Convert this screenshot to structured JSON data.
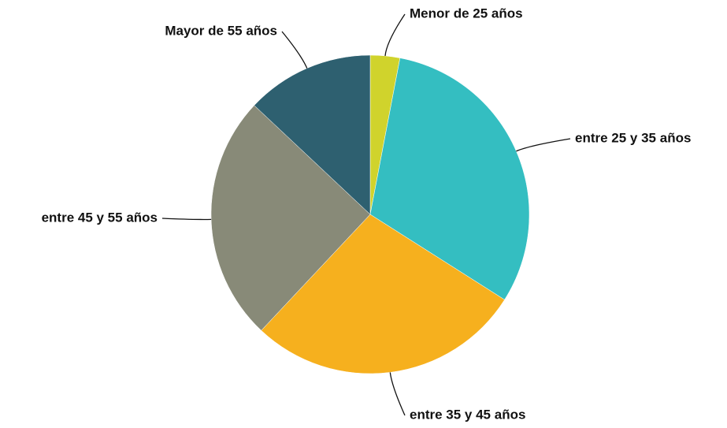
{
  "chart_data": {
    "type": "pie",
    "categories": [
      "Menor de 25 años",
      "entre 25 y 35 años",
      "entre 35 y 45 años",
      "entre 45 y 55 años",
      "Mayor de 55 años"
    ],
    "values": [
      3,
      31,
      28,
      25,
      13
    ],
    "colors": [
      "#d0d32c",
      "#34bec1",
      "#f6b01e",
      "#888a78",
      "#2e6070"
    ]
  }
}
